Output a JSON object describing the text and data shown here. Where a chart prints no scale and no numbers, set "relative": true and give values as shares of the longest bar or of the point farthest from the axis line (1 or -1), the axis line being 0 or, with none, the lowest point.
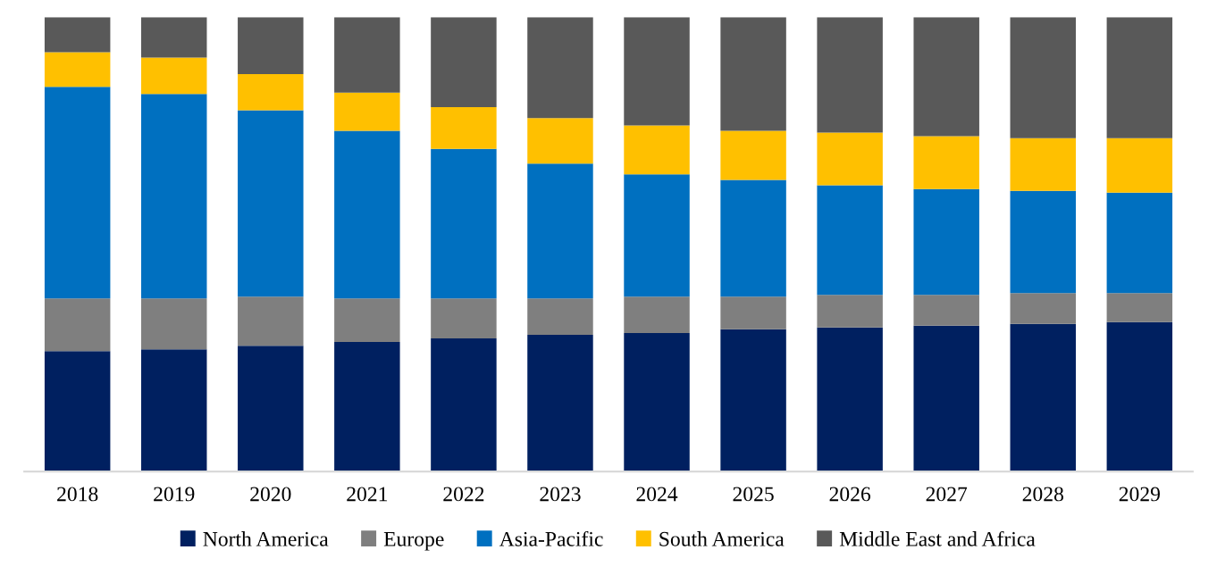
{
  "chart_data": {
    "type": "bar",
    "stacked": true,
    "relative": true,
    "legend": "bottom",
    "grid": false,
    "categories": [
      "2018",
      "2019",
      "2020",
      "2021",
      "2022",
      "2023",
      "2024",
      "2025",
      "2026",
      "2027",
      "2028",
      "2029"
    ],
    "series": [
      {
        "name": "North America",
        "color": "#002060",
        "values": [
          0.265,
          0.269,
          0.277,
          0.285,
          0.293,
          0.301,
          0.305,
          0.313,
          0.317,
          0.321,
          0.325,
          0.329
        ]
      },
      {
        "name": "Europe",
        "color": "#7f7f7f",
        "values": [
          0.116,
          0.112,
          0.108,
          0.096,
          0.088,
          0.08,
          0.08,
          0.072,
          0.072,
          0.068,
          0.068,
          0.064
        ]
      },
      {
        "name": "Asia-Pacific",
        "color": "#0070c0",
        "values": [
          0.466,
          0.45,
          0.41,
          0.369,
          0.329,
          0.297,
          0.269,
          0.257,
          0.241,
          0.233,
          0.225,
          0.221
        ]
      },
      {
        "name": "South America",
        "color": "#ffc000",
        "values": [
          0.076,
          0.08,
          0.08,
          0.084,
          0.092,
          0.1,
          0.108,
          0.108,
          0.116,
          0.116,
          0.116,
          0.12
        ]
      },
      {
        "name": "Middle East and Africa",
        "color": "#595959",
        "values": [
          0.077,
          0.089,
          0.125,
          0.166,
          0.198,
          0.222,
          0.238,
          0.25,
          0.254,
          0.262,
          0.266,
          0.266
        ]
      }
    ]
  }
}
